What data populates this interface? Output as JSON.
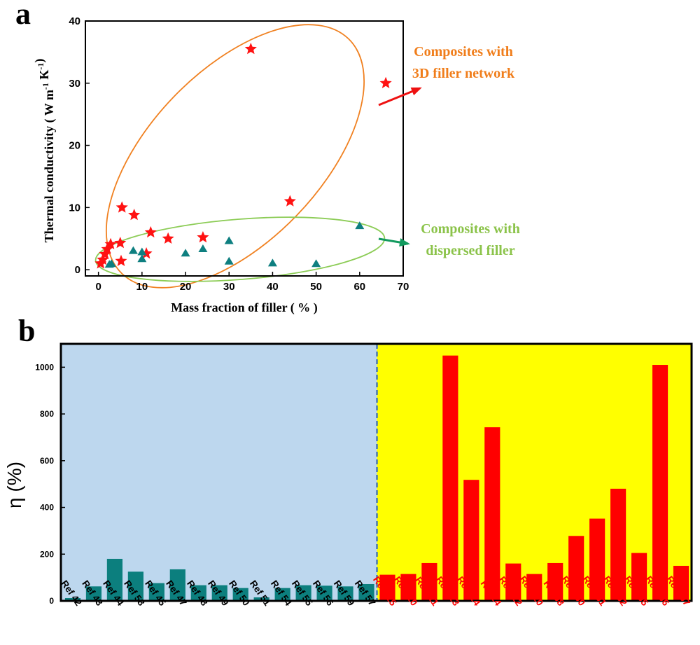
{
  "panel_labels": {
    "a": "a",
    "b": "b"
  },
  "colors": {
    "star": "#ff1212",
    "triangle": "#0e7f80",
    "ellipse_3d": "#f08121",
    "ellipse_disp": "#8ccc56",
    "note_3d": "#f07d1a",
    "note_disp": "#8bc34a",
    "arrow_3d": "#ee1111",
    "arrow_disp": "#129a5e",
    "bg_left": "#bdd7ee",
    "bg_right": "#ffff00",
    "bar_left": "#0c7f7e",
    "bar_right": "#ff0000",
    "divider": "#4a78b0"
  },
  "chart_data": [
    {
      "type": "scatter",
      "xlabel": "Mass fraction of filler ( % )",
      "ylabel": "Thermal conductivity ( W m-1 K-1)",
      "ylabel_parts": {
        "pre": "Thermal conductivity ( W m",
        "sup1": "-1",
        "mid": " K",
        "sup2": "-1",
        "post": ")"
      },
      "xlim": [
        -3,
        70
      ],
      "ylim": [
        -1,
        40
      ],
      "xticks": [
        0,
        10,
        20,
        30,
        40,
        50,
        60,
        70
      ],
      "yticks": [
        0,
        10,
        20,
        30,
        40
      ],
      "annotations": {
        "three_d": [
          "Composites with",
          "3D filler network"
        ],
        "dispersed": [
          "Composites with",
          "dispersed filler"
        ]
      },
      "series": [
        {
          "marker": "star",
          "points": [
            [
              0.5,
              1.0
            ],
            [
              1.0,
              1.6
            ],
            [
              1.5,
              2.5
            ],
            [
              2.0,
              3.3
            ],
            [
              2.8,
              4.1
            ],
            [
              5.0,
              4.3
            ],
            [
              5.2,
              1.4
            ],
            [
              5.4,
              10.0
            ],
            [
              8.2,
              8.8
            ],
            [
              11.0,
              2.6
            ],
            [
              12.0,
              6.0
            ],
            [
              16.0,
              5.0
            ],
            [
              24.0,
              5.2
            ],
            [
              35.0,
              35.5
            ],
            [
              44.0,
              11.0
            ],
            [
              66.0,
              30.0
            ]
          ]
        },
        {
          "marker": "triangle",
          "points": [
            [
              2.5,
              0.8
            ],
            [
              3.0,
              0.9
            ],
            [
              8.0,
              3.0
            ],
            [
              10.0,
              1.7
            ],
            [
              10.0,
              2.8
            ],
            [
              20.0,
              2.6
            ],
            [
              24.0,
              3.3
            ],
            [
              30.0,
              4.6
            ],
            [
              30.0,
              1.3
            ],
            [
              40.0,
              1.0
            ],
            [
              50.0,
              0.9
            ],
            [
              60.0,
              7.0
            ]
          ]
        }
      ]
    },
    {
      "type": "bar",
      "ylabel": "η (%)",
      "ylim": [
        0,
        1100
      ],
      "yticks": [
        0,
        200,
        400,
        600,
        800,
        1000
      ],
      "categories": [
        "Ref 42",
        "Ref 43",
        "Ref 44",
        "Ref 58",
        "Ref 45",
        "Ref 47",
        "Ref 48",
        "Ref 49",
        "Ref 50",
        "Ref 51",
        "Ref 54",
        "Ref 55",
        "Ref 56",
        "Ref 59",
        "Ref 57",
        "Ref 115",
        "Ref 110",
        "Ref 111",
        "Ref 113",
        "Ref 114",
        "Ref 24",
        "Ref 112",
        "Ref 120",
        "Ref 98",
        "Ref 100",
        "Ref 101",
        "Ref 102",
        "Ref 105",
        "Ref 106",
        "Ref 107"
      ],
      "values": [
        12,
        62,
        180,
        125,
        76,
        135,
        67,
        67,
        55,
        15,
        55,
        67,
        65,
        62,
        72,
        112,
        115,
        162,
        1050,
        518,
        743,
        160,
        115,
        162,
        278,
        352,
        480,
        205,
        1010,
        150
      ],
      "group_split_index": 15
    }
  ]
}
